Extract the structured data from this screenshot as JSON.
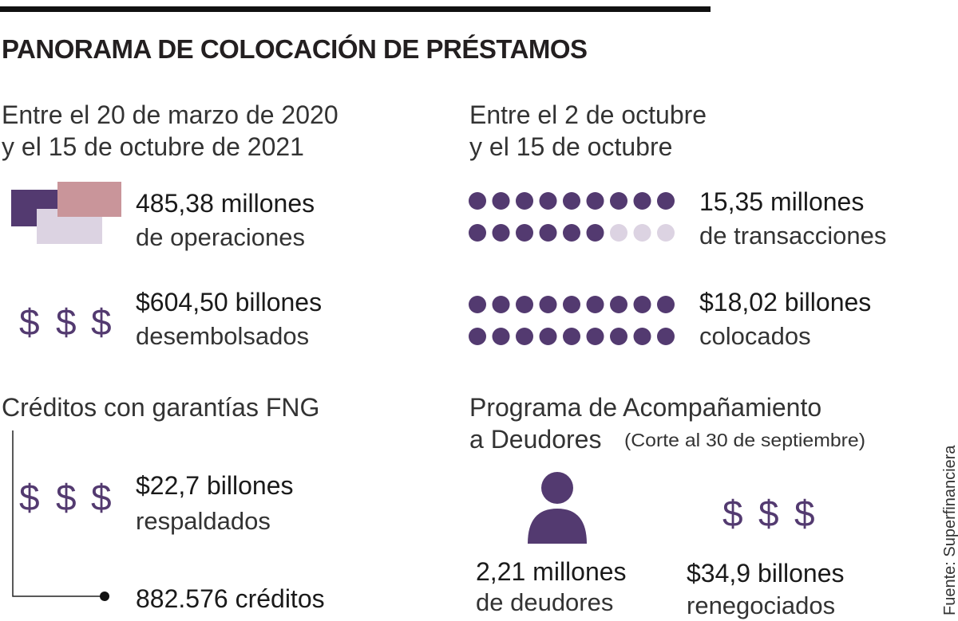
{
  "header": {
    "title": "PANORAMA DE COLOCACIÓN DE PRÉSTAMOS"
  },
  "dollar_icon": "$",
  "left": {
    "period": [
      "Entre el 20 de marzo de 2020",
      "y el 15 de octubre de 2021"
    ],
    "operations": {
      "value": "485,38 millones",
      "label": "de operaciones"
    },
    "disbursed": {
      "value": "$604,50 billones",
      "label": "desembolsados"
    },
    "fng": {
      "heading": "Créditos con garantías FNG",
      "backed": {
        "value": "$22,7 billones",
        "label": "respaldados"
      },
      "credits": "882.576 créditos"
    }
  },
  "right": {
    "period": [
      "Entre el 2 de octubre",
      "y el 15 de octubre"
    ],
    "transactions": {
      "value": "15,35 millones",
      "label": "de transacciones"
    },
    "placed": {
      "value": "$18,02 billones",
      "label": "colocados"
    },
    "program": {
      "heading": [
        "Programa de Acompañamiento",
        "a Deudores"
      ],
      "note": "(Corte al 30 de septiembre)",
      "debtors": {
        "value": "2,21 millones",
        "label": "de deudores"
      },
      "renegotiated": {
        "value": "$34,9 billones",
        "label": "renegociados"
      }
    }
  },
  "source": "Fuente: Superfinanciera"
}
